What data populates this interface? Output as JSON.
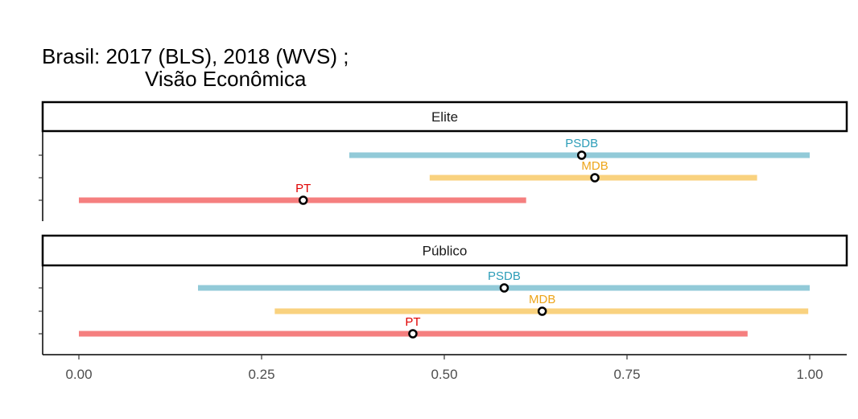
{
  "chart_data": {
    "type": "interval",
    "title_line1": "Brasil: 2017 (BLS), 2018 (WVS) ;",
    "title_line2": "Visão Econômica",
    "xlim": [
      0,
      1
    ],
    "x_ticks": [
      0,
      0.25,
      0.5,
      0.75,
      1
    ],
    "x_tick_labels": [
      "0.00",
      "0.25",
      "0.50",
      "0.75",
      "1.00"
    ],
    "grid": false,
    "legend": "none",
    "colors": {
      "PSDB_line": "#92cad8",
      "PSDB_text": "#2c9db8",
      "MDB_line": "#f9d27f",
      "MDB_text": "#eda51a",
      "PT_line": "#f57f7f",
      "PT_text": "#e00000"
    },
    "panels": [
      {
        "label": "Elite",
        "series": [
          {
            "party": "PSDB",
            "low": 0.37,
            "high": 1.0,
            "point": 0.688
          },
          {
            "party": "MDB",
            "low": 0.48,
            "high": 0.928,
            "point": 0.706
          },
          {
            "party": "PT",
            "low": 0.0,
            "high": 0.612,
            "point": 0.307
          }
        ]
      },
      {
        "label": "Público",
        "series": [
          {
            "party": "PSDB",
            "low": 0.163,
            "high": 1.0,
            "point": 0.582
          },
          {
            "party": "MDB",
            "low": 0.268,
            "high": 0.998,
            "point": 0.634
          },
          {
            "party": "PT",
            "low": 0.0,
            "high": 0.915,
            "point": 0.457
          }
        ]
      }
    ]
  }
}
